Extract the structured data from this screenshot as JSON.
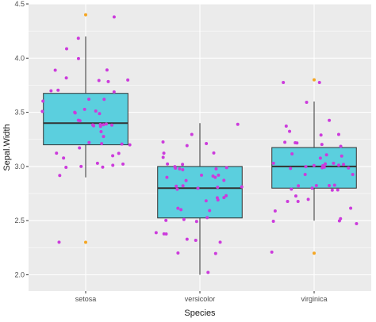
{
  "chart_data": {
    "type": "boxplot",
    "title": "",
    "xlabel": "Species",
    "ylabel": "Sepal.Width",
    "ylim": [
      1.85,
      4.5
    ],
    "y_ticks": [
      "2.0",
      "2.5",
      "3.0",
      "3.5",
      "4.0",
      "4.5"
    ],
    "grid": true,
    "categories": [
      "setosa",
      "versicolor",
      "virginica"
    ],
    "boxes": [
      {
        "category": "setosa",
        "min": 2.9,
        "q1": 3.2,
        "median": 3.4,
        "q3": 3.675,
        "max": 4.2,
        "outliers": [
          4.4,
          2.3
        ]
      },
      {
        "category": "versicolor",
        "min": 2.0,
        "q1": 2.525,
        "median": 2.8,
        "q3": 3.0,
        "max": 3.4,
        "outliers": []
      },
      {
        "category": "virginica",
        "min": 2.5,
        "q1": 2.8,
        "median": 3.0,
        "q3": 3.175,
        "max": 3.6,
        "outliers": [
          3.8,
          2.2
        ]
      }
    ],
    "jitter_points": [
      {
        "category": "setosa",
        "values": [
          3.5,
          3.0,
          3.2,
          3.1,
          3.6,
          3.9,
          3.4,
          3.4,
          2.9,
          3.1,
          3.7,
          3.4,
          3.0,
          3.0,
          4.0,
          4.4,
          3.9,
          3.5,
          3.8,
          3.8,
          3.4,
          3.7,
          3.6,
          3.3,
          3.4,
          3.0,
          3.4,
          3.5,
          3.4,
          3.2,
          3.1,
          3.4,
          4.1,
          4.2,
          3.1,
          3.2,
          3.5,
          3.6,
          3.0,
          3.4,
          3.5,
          2.3,
          3.2,
          3.5,
          3.8,
          3.0,
          3.8,
          3.2,
          3.7,
          3.3
        ]
      },
      {
        "category": "versicolor",
        "values": [
          3.2,
          3.2,
          3.1,
          2.3,
          2.8,
          2.8,
          3.3,
          2.4,
          2.9,
          2.7,
          2.0,
          3.0,
          2.2,
          2.9,
          2.9,
          3.1,
          3.0,
          2.7,
          2.2,
          2.5,
          3.2,
          2.8,
          2.5,
          2.8,
          2.9,
          3.0,
          2.8,
          3.0,
          2.9,
          2.6,
          2.4,
          2.4,
          2.7,
          2.7,
          3.0,
          3.4,
          3.1,
          2.3,
          3.0,
          2.5,
          2.6,
          3.0,
          2.6,
          2.3,
          2.7,
          3.0,
          2.9,
          2.9,
          2.5,
          2.8
        ]
      },
      {
        "category": "virginica",
        "values": [
          3.3,
          2.7,
          3.0,
          2.9,
          3.0,
          3.0,
          2.5,
          2.9,
          2.5,
          3.6,
          3.2,
          2.7,
          3.0,
          2.5,
          2.8,
          3.2,
          3.0,
          3.8,
          2.6,
          2.2,
          3.2,
          2.8,
          2.8,
          2.7,
          3.3,
          3.2,
          2.8,
          3.0,
          2.8,
          3.0,
          2.8,
          3.8,
          2.8,
          2.8,
          2.6,
          3.0,
          3.4,
          3.1,
          3.0,
          3.1,
          3.1,
          3.1,
          2.7,
          3.2,
          3.3,
          3.0,
          2.5,
          3.0,
          3.4,
          3.0
        ]
      }
    ],
    "colors": {
      "panel_background": "#ebebeb",
      "grid": "#ffffff",
      "box_fill": "#5bcfde",
      "box_stroke": "#333333",
      "point": "#cc3bdc",
      "outlier": "#f5a623"
    }
  }
}
